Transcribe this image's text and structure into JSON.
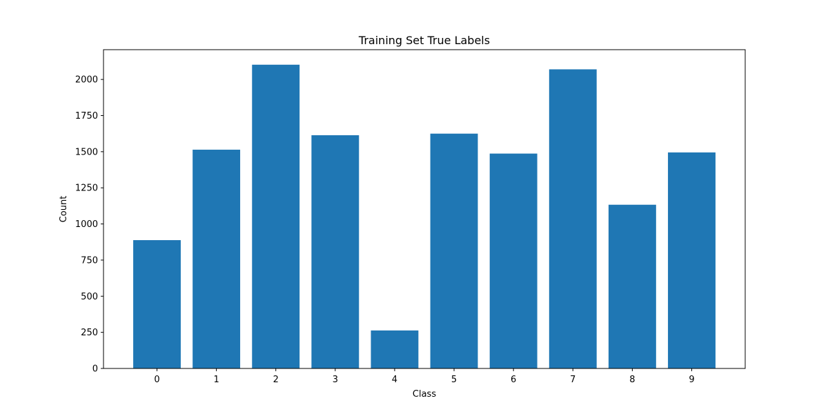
{
  "chart_data": {
    "type": "bar",
    "title": "Training Set True Labels",
    "xlabel": "Class",
    "ylabel": "Count",
    "categories": [
      "0",
      "1",
      "2",
      "3",
      "4",
      "5",
      "6",
      "7",
      "8",
      "9"
    ],
    "values": [
      888,
      1514,
      2102,
      1614,
      263,
      1625,
      1487,
      2070,
      1133,
      1495
    ],
    "ylim": [
      0,
      2206
    ],
    "yticks": [
      "0",
      "250",
      "500",
      "750",
      "1000",
      "1250",
      "1500",
      "1750",
      "2000"
    ],
    "bar_color": "#1f77b4",
    "grid": false
  }
}
